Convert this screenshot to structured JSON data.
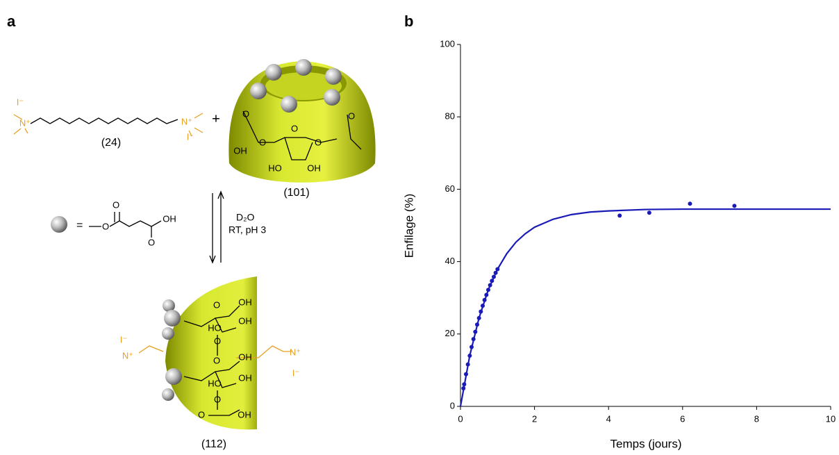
{
  "panels": [
    "a",
    "b"
  ],
  "scheme": {
    "compounds": [
      "(24)",
      "(101)",
      "(112)"
    ],
    "plus": "+",
    "equals": "=",
    "conditions": [
      "D₂O",
      "RT, pH 3"
    ],
    "atoms": [
      "I⁻",
      "N⁺",
      "N⁺",
      "I⁻",
      "OH",
      "O",
      "O",
      "HO",
      "OH",
      "O",
      "O",
      "O",
      "O",
      "OH",
      "OH",
      "HO",
      "O",
      "O",
      "OH",
      "OH",
      "HO",
      "O",
      "O",
      "OH",
      "I⁻",
      "N⁺",
      "N⁺",
      "I⁻",
      "O",
      "O",
      "OH",
      "O"
    ]
  },
  "chart_data": {
    "type": "scatter",
    "xlabel": "Temps (jours)",
    "ylabel": "Enfilage (%)",
    "xlim": [
      0,
      10
    ],
    "ylim": [
      0,
      100
    ],
    "xticks": [
      0,
      2,
      4,
      6,
      8,
      10
    ],
    "yticks": [
      0,
      20,
      40,
      60,
      80,
      100
    ],
    "grid": false,
    "series": [
      {
        "kind": "scatter",
        "color": "#1a1ab8",
        "x": [
          0.08,
          0.1,
          0.15,
          0.2,
          0.25,
          0.3,
          0.35,
          0.4,
          0.45,
          0.5,
          0.55,
          0.6,
          0.65,
          0.7,
          0.75,
          0.8,
          0.85,
          0.9,
          0.95,
          1.0,
          4.3,
          5.1,
          6.2,
          7.4
        ],
        "values": [
          5,
          6.1,
          8.9,
          11.6,
          14.0,
          16.4,
          18.6,
          20.6,
          22.6,
          24.4,
          26.2,
          27.8,
          29.4,
          30.8,
          32.2,
          33.5,
          34.7,
          35.8,
          36.9,
          37.9,
          52.7,
          53.5,
          56,
          55.4
        ]
      },
      {
        "kind": "line",
        "color": "#1a1ab8",
        "x": [
          0,
          0.25,
          0.5,
          0.75,
          1,
          1.25,
          1.5,
          1.75,
          2,
          2.5,
          3,
          3.5,
          4,
          5,
          6,
          7,
          8,
          9,
          10
        ],
        "values": [
          0,
          14.0,
          24.4,
          32.2,
          37.9,
          42.2,
          45.4,
          47.7,
          49.5,
          51.7,
          53.0,
          53.7,
          54.0,
          54.4,
          54.5,
          54.5,
          54.5,
          54.5,
          54.5
        ]
      }
    ]
  }
}
